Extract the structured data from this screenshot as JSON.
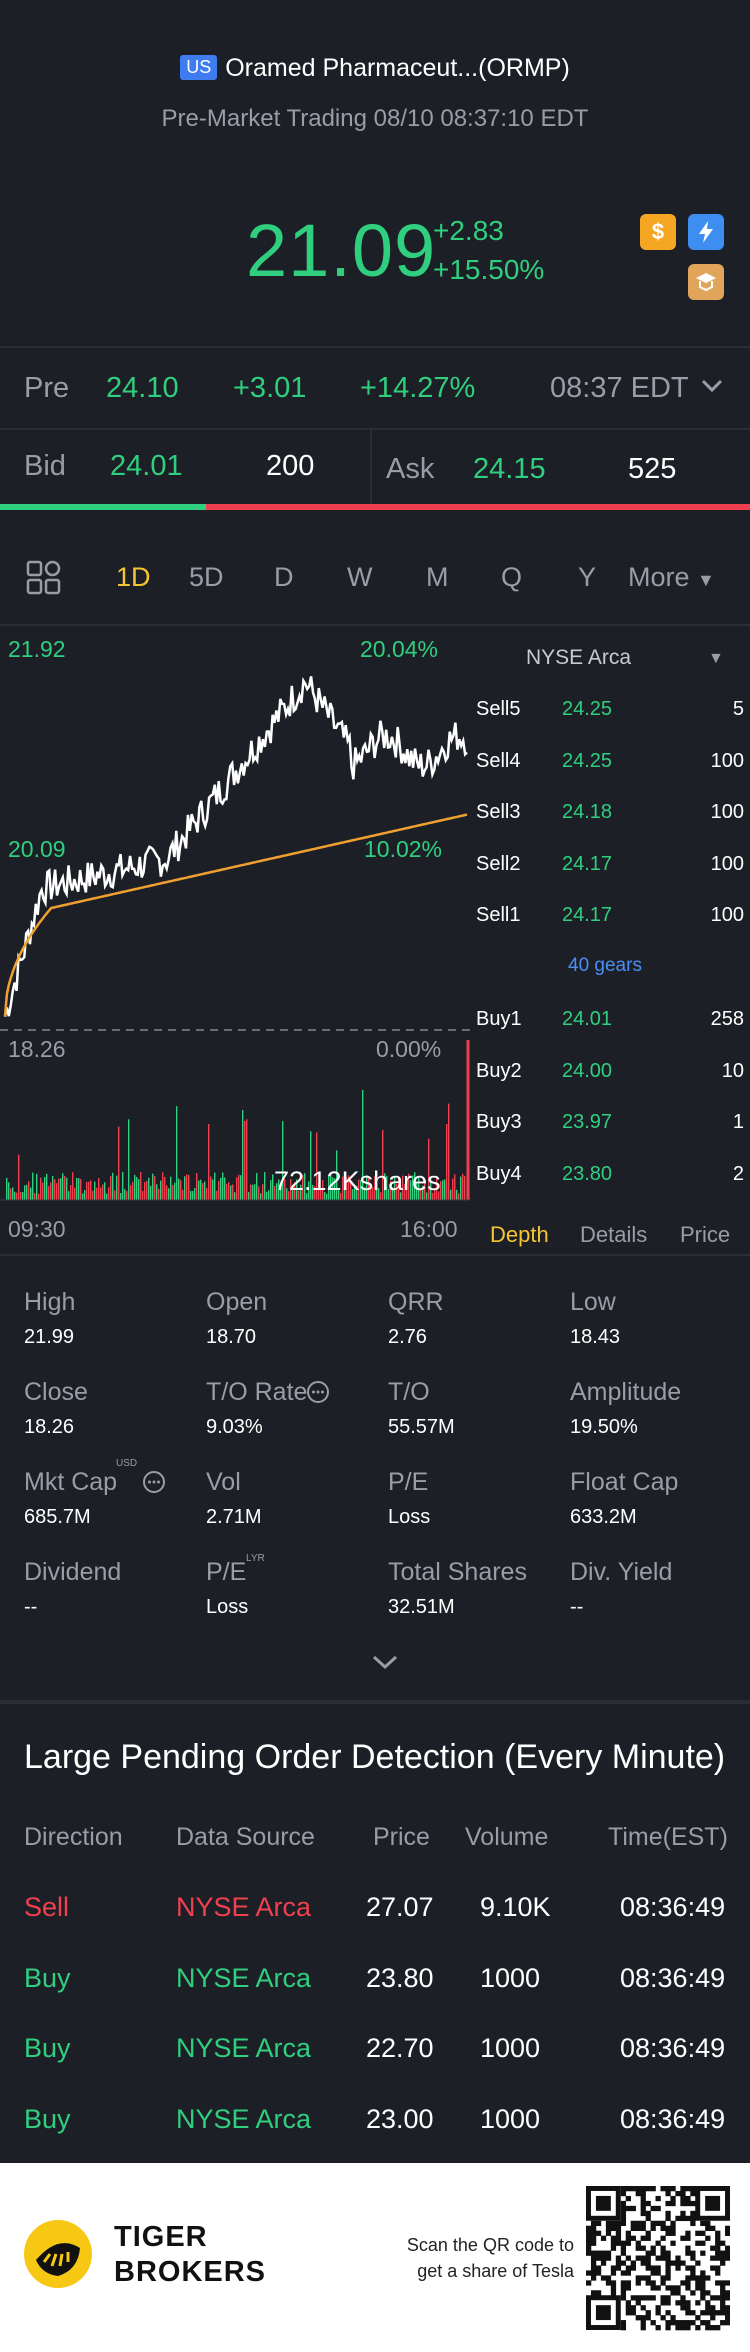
{
  "header": {
    "market_badge": "US",
    "title": "Oramed Pharmaceut...(ORMP)",
    "subtitle": "Pre-Market Trading 08/10 08:37:10 EDT",
    "price": "21.09",
    "change": "+2.83",
    "change_pct": "+15.50%",
    "icons": [
      "dollar-icon",
      "flash-icon",
      "education-icon"
    ]
  },
  "pre_row": {
    "label": "Pre",
    "price": "24.10",
    "change": "+3.01",
    "change_pct": "+14.27%",
    "time": "08:37 EDT"
  },
  "bid_ask": {
    "bid_label": "Bid",
    "bid_price": "24.01",
    "bid_size": "200",
    "ask_label": "Ask",
    "ask_price": "24.15",
    "ask_size": "525",
    "bid_fraction": 0.275
  },
  "tabs": [
    "1D",
    "5D",
    "D",
    "W",
    "M",
    "Q",
    "Y",
    "More"
  ],
  "chart": {
    "y_top": "21.92",
    "y_mid": "20.09",
    "y_bottom": "18.26",
    "pct_top": "20.04%",
    "pct_mid": "10.02%",
    "pct_bottom": "0.00%",
    "volume_label": "72.12Kshares",
    "x_start": "09:30",
    "x_end": "16:00"
  },
  "order_book": {
    "exchange": "NYSE Arca",
    "sells": [
      {
        "label": "Sell5",
        "price": "24.25",
        "vol": "5"
      },
      {
        "label": "Sell4",
        "price": "24.25",
        "vol": "100"
      },
      {
        "label": "Sell3",
        "price": "24.18",
        "vol": "100"
      },
      {
        "label": "Sell2",
        "price": "24.17",
        "vol": "100"
      },
      {
        "label": "Sell1",
        "price": "24.17",
        "vol": "100"
      }
    ],
    "gears": "40 gears",
    "buys": [
      {
        "label": "Buy1",
        "price": "24.01",
        "vol": "258"
      },
      {
        "label": "Buy2",
        "price": "24.00",
        "vol": "10"
      },
      {
        "label": "Buy3",
        "price": "23.97",
        "vol": "1"
      },
      {
        "label": "Buy4",
        "price": "23.80",
        "vol": "2"
      }
    ],
    "tabs": [
      "Depth",
      "Details",
      "Price"
    ]
  },
  "stats": [
    {
      "label": "High",
      "value": "21.99"
    },
    {
      "label": "Open",
      "value": "18.70"
    },
    {
      "label": "QRR",
      "value": "2.76"
    },
    {
      "label": "Low",
      "value": "18.43"
    },
    {
      "label": "Close",
      "value": "18.26"
    },
    {
      "label": "T/O Rate",
      "value": "9.03%"
    },
    {
      "label": "T/O",
      "value": "55.57M"
    },
    {
      "label": "Amplitude",
      "value": "19.50%"
    },
    {
      "label": "Mkt Cap",
      "value": "685.7M"
    },
    {
      "label": "Vol",
      "value": "2.71M"
    },
    {
      "label": "P/E",
      "value": "Loss"
    },
    {
      "label": "Float Cap",
      "value": "633.2M"
    },
    {
      "label": "Dividend",
      "value": "--"
    },
    {
      "label": "P/E",
      "value": "Loss"
    },
    {
      "label": "Total Shares",
      "value": "32.51M"
    },
    {
      "label": "Div. Yield",
      "value": "--"
    }
  ],
  "stat_superscripts": {
    "mkt_cap": "USD",
    "pe_lyr": "LYR"
  },
  "large_orders": {
    "title": "Large Pending Order Detection (Every Minute)",
    "headers": [
      "Direction",
      "Data Source",
      "Price",
      "Volume",
      "Time(EST)"
    ],
    "rows": [
      {
        "direction": "Sell",
        "source": "NYSE Arca",
        "price": "27.07",
        "volume": "9.10K",
        "time": "08:36:49"
      },
      {
        "direction": "Buy",
        "source": "NYSE Arca",
        "price": "23.80",
        "volume": "1000",
        "time": "08:36:49"
      },
      {
        "direction": "Buy",
        "source": "NYSE Arca",
        "price": "22.70",
        "volume": "1000",
        "time": "08:36:49"
      },
      {
        "direction": "Buy",
        "source": "NYSE Arca",
        "price": "23.00",
        "volume": "1000",
        "time": "08:36:49"
      }
    ]
  },
  "footer": {
    "brand_line1": "TIGER",
    "brand_line2": "BROKERS",
    "qr_line1": "Scan the QR code to",
    "qr_line2": "get a share of Tesla"
  },
  "colors": {
    "up": "#2fcf7f",
    "down": "#f0404f",
    "accent": "#f4c531",
    "bg": "#1d1f26"
  }
}
